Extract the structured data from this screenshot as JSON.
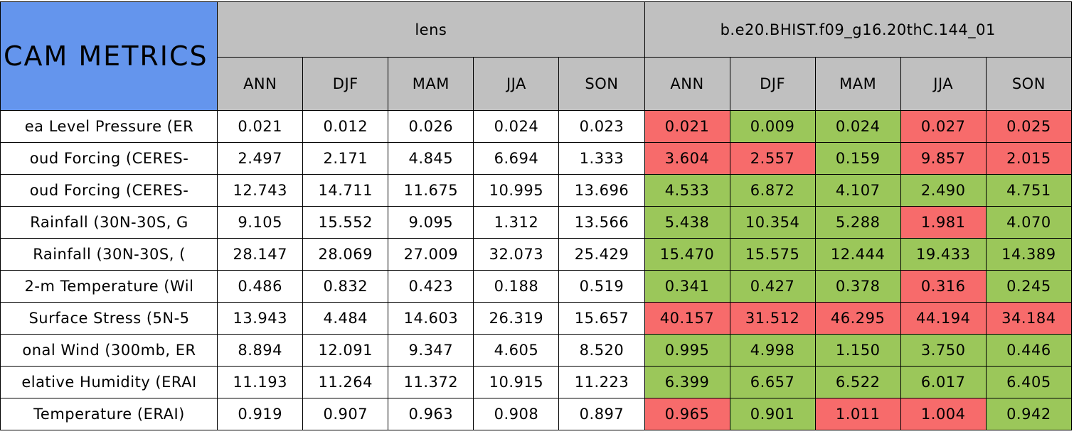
{
  "header": {
    "title": "CAM METRICS",
    "groups": [
      {
        "name": "lens",
        "seasons": [
          "ANN",
          "DJF",
          "MAM",
          "JJA",
          "SON"
        ]
      },
      {
        "name": "b.e20.BHIST.f09_g16.20thC.144_01",
        "seasons": [
          "ANN",
          "DJF",
          "MAM",
          "JJA",
          "SON"
        ]
      }
    ]
  },
  "table": {
    "rows": [
      {
        "label": "ea Level Pressure (ER",
        "lens": [
          "0.021",
          "0.012",
          "0.026",
          "0.024",
          "0.023"
        ],
        "model": [
          "0.021",
          "0.009",
          "0.024",
          "0.027",
          "0.025"
        ],
        "model_colors": [
          "#f76b6b",
          "#9bc75a",
          "#9bc75a",
          "#f76b6b",
          "#f76b6b"
        ]
      },
      {
        "label": "oud Forcing (CERES-",
        "lens": [
          "2.497",
          "2.171",
          "4.845",
          "6.694",
          "1.333"
        ],
        "model": [
          "3.604",
          "2.557",
          "0.159",
          "9.857",
          "2.015"
        ],
        "model_colors": [
          "#f76b6b",
          "#f76b6b",
          "#9bc75a",
          "#f76b6b",
          "#f76b6b"
        ]
      },
      {
        "label": "oud Forcing (CERES-",
        "lens": [
          "12.743",
          "14.711",
          "11.675",
          "10.995",
          "13.696"
        ],
        "model": [
          "4.533",
          "6.872",
          "4.107",
          "2.490",
          "4.751"
        ],
        "model_colors": [
          "#9bc75a",
          "#9bc75a",
          "#9bc75a",
          "#9bc75a",
          "#9bc75a"
        ]
      },
      {
        "label": "Rainfall (30N-30S, G",
        "lens": [
          "9.105",
          "15.552",
          "9.095",
          "1.312",
          "13.566"
        ],
        "model": [
          "5.438",
          "10.354",
          "5.288",
          "1.981",
          "4.070"
        ],
        "model_colors": [
          "#9bc75a",
          "#9bc75a",
          "#9bc75a",
          "#f76b6b",
          "#9bc75a"
        ]
      },
      {
        "label": "Rainfall (30N-30S, (",
        "lens": [
          "28.147",
          "28.069",
          "27.009",
          "32.073",
          "25.429"
        ],
        "model": [
          "15.470",
          "15.575",
          "12.444",
          "19.433",
          "14.389"
        ],
        "model_colors": [
          "#9bc75a",
          "#9bc75a",
          "#9bc75a",
          "#9bc75a",
          "#9bc75a"
        ]
      },
      {
        "label": "2-m Temperature (Wil",
        "lens": [
          "0.486",
          "0.832",
          "0.423",
          "0.188",
          "0.519"
        ],
        "model": [
          "0.341",
          "0.427",
          "0.378",
          "0.316",
          "0.245"
        ],
        "model_colors": [
          "#9bc75a",
          "#9bc75a",
          "#9bc75a",
          "#f76b6b",
          "#9bc75a"
        ]
      },
      {
        "label": "Surface Stress (5N-5",
        "lens": [
          "13.943",
          "4.484",
          "14.603",
          "26.319",
          "15.657"
        ],
        "model": [
          "40.157",
          "31.512",
          "46.295",
          "44.194",
          "34.184"
        ],
        "model_colors": [
          "#f76b6b",
          "#f76b6b",
          "#f76b6b",
          "#f76b6b",
          "#f76b6b"
        ]
      },
      {
        "label": "onal Wind (300mb, ER",
        "lens": [
          "8.894",
          "12.091",
          "9.347",
          "4.605",
          "8.520"
        ],
        "model": [
          "0.995",
          "4.998",
          "1.150",
          "3.750",
          "0.446"
        ],
        "model_colors": [
          "#9bc75a",
          "#9bc75a",
          "#9bc75a",
          "#9bc75a",
          "#9bc75a"
        ]
      },
      {
        "label": "elative Humidity (ERAI",
        "lens": [
          "11.193",
          "11.264",
          "11.372",
          "10.915",
          "11.223"
        ],
        "model": [
          "6.399",
          "6.657",
          "6.522",
          "6.017",
          "6.405"
        ],
        "model_colors": [
          "#9bc75a",
          "#9bc75a",
          "#9bc75a",
          "#9bc75a",
          "#9bc75a"
        ]
      },
      {
        "label": "Temperature (ERAI)",
        "lens": [
          "0.919",
          "0.907",
          "0.963",
          "0.908",
          "0.897"
        ],
        "model": [
          "0.965",
          "0.901",
          "1.011",
          "1.004",
          "0.942"
        ],
        "model_colors": [
          "#f76b6b",
          "#9bc75a",
          "#f76b6b",
          "#f76b6b",
          "#9bc75a"
        ]
      }
    ]
  }
}
